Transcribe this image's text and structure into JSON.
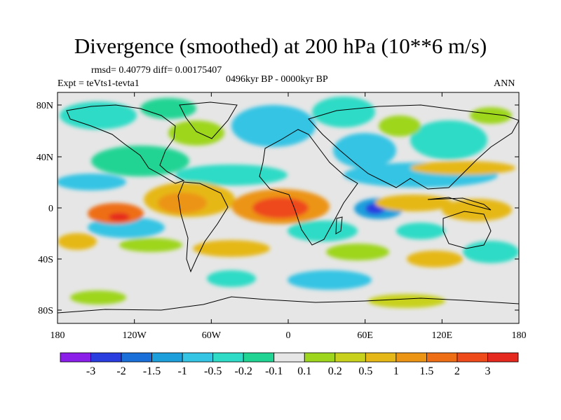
{
  "title": "Divergence (smoothed) at 200 hPa (10**6 m/s)",
  "stats": "rmsd= 0.40779 diff= 0.00175407",
  "experiment": "Expt = teVts1-tevta1",
  "period": "0496kyr BP - 0000kyr BP",
  "season": "ANN",
  "lat_labels": [
    "80N",
    "40N",
    "0",
    "40S",
    "80S"
  ],
  "lon_labels": [
    "180",
    "120W",
    "60W",
    "0",
    "60E",
    "120E",
    "180"
  ],
  "colorbar": {
    "labels": [
      "-3",
      "-2",
      "-1.5",
      "-1",
      "-0.5",
      "-0.2",
      "-0.1",
      "0.1",
      "0.2",
      "0.5",
      "1",
      "1.5",
      "2",
      "3"
    ],
    "colors": [
      "#8b1ee8",
      "#2a3ee0",
      "#1a6fd9",
      "#1d9fdc",
      "#34c4e4",
      "#2edbc6",
      "#20d494",
      "#e6e6e6",
      "#9ed61e",
      "#c8d21c",
      "#e6b817",
      "#ec9414",
      "#ee6e16",
      "#ee4a1a",
      "#e6291e"
    ]
  },
  "colors": {
    "ocean_bg": "#e6e6e6"
  }
}
